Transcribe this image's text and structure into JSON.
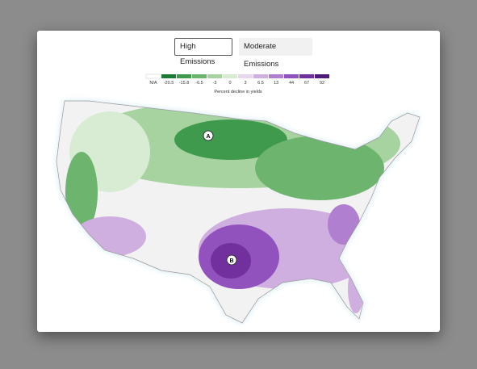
{
  "buttons": [
    "High Emissions",
    "Moderate Emissions"
  ],
  "legend": {
    "title": "Percent decline in yields",
    "items": [
      {
        "label": "N/A",
        "color": "#ffffff"
      },
      {
        "label": "-20.5",
        "color": "#1b7a33"
      },
      {
        "label": "-15.8",
        "color": "#3f9a4e"
      },
      {
        "label": "-6.5",
        "color": "#6db46f"
      },
      {
        "label": "-3",
        "color": "#a6d3a0"
      },
      {
        "label": "0",
        "color": "#d8ecd4"
      },
      {
        "label": "3",
        "color": "#e8d8ee"
      },
      {
        "label": "6.5",
        "color": "#cfaee0"
      },
      {
        "label": "13",
        "color": "#b07fcf"
      },
      {
        "label": "44",
        "color": "#9152be"
      },
      {
        "label": "67",
        "color": "#72309f"
      },
      {
        "label": "92",
        "color": "#4f1a78"
      }
    ]
  },
  "markers": [
    "A",
    "B"
  ]
}
